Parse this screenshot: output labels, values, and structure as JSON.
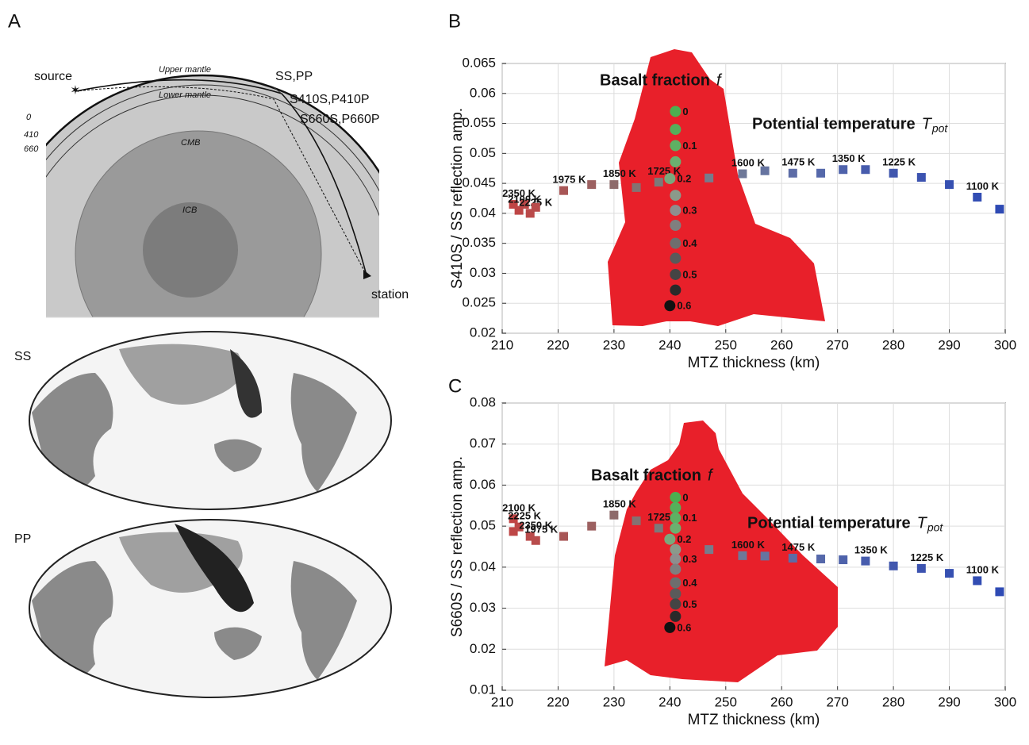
{
  "panel_a": {
    "label": "A",
    "source": "source",
    "upper_mantle": "Upper mantle",
    "lower_mantle": "Lower mantle",
    "ss_pp": "SS,PP",
    "s410": "S410S,P410P",
    "s660": "S660S,P660P",
    "depths": [
      "0",
      "410",
      "660"
    ],
    "cmb": "CMB",
    "icb": "ICB",
    "station": "station",
    "maps": [
      "SS",
      "PP"
    ]
  },
  "chart_data": [
    {
      "type": "scatter",
      "label": "B",
      "xlabel": "MTZ thickness (km)",
      "ylabel": "S410S / SS reflection amp.",
      "xlim": [
        210,
        300
      ],
      "xticks": [
        210,
        220,
        230,
        240,
        250,
        260,
        270,
        280,
        290,
        300
      ],
      "ylim": [
        0.02,
        0.065
      ],
      "yticks": [
        0.02,
        0.025,
        0.03,
        0.035,
        0.04,
        0.045,
        0.05,
        0.055,
        0.06,
        0.065
      ],
      "grid": true,
      "cloud_color": "#e8202a",
      "series": [
        {
          "name": "Potential temperature",
          "symbol": "T",
          "symbol_sub": "pot",
          "marker": "square",
          "x": [
            212,
            213,
            214,
            215,
            216,
            221,
            226,
            230,
            234,
            238,
            247,
            253,
            257,
            262,
            267,
            271,
            275,
            280,
            285,
            290,
            295,
            299
          ],
          "values": [
            0.0415,
            0.0405,
            0.0415,
            0.04,
            0.041,
            0.0438,
            0.0448,
            0.0448,
            0.0443,
            0.0452,
            0.0459,
            0.0466,
            0.0471,
            0.0467,
            0.0467,
            0.0473,
            0.0473,
            0.0467,
            0.046,
            0.0448,
            0.0427,
            0.0407
          ],
          "labels": [
            "2350 K",
            "2100 K",
            null,
            "2225 K",
            null,
            "1975 K",
            null,
            "1850 K",
            null,
            "1725 K",
            null,
            "1600 K",
            null,
            "1475 K",
            null,
            "1350 K",
            null,
            "1225 K",
            null,
            null,
            "1100 K",
            null
          ],
          "colors": [
            "#c04444",
            "#be4646",
            "#bc4848",
            "#ba4a4a",
            "#b84c4c",
            "#a85656",
            "#9c6060",
            "#8e6a6a",
            "#847272",
            "#7c7a7a",
            "#767c8c",
            "#6e7898",
            "#6674a0",
            "#5d6ca6",
            "#5568aa",
            "#4e62ab",
            "#475cad",
            "#4157ae",
            "#3c53b0",
            "#3650b1",
            "#324db3",
            "#2e4ab4"
          ]
        },
        {
          "name": "Basalt fraction",
          "symbol": "f",
          "marker": "circle",
          "x": [
            241,
            241,
            241,
            241,
            240,
            241,
            241,
            241,
            241,
            241,
            241,
            241,
            240
          ],
          "values": [
            0.057,
            0.054,
            0.0513,
            0.0486,
            0.0458,
            0.043,
            0.0405,
            0.038,
            0.035,
            0.0325,
            0.0298,
            0.0272,
            0.0246
          ],
          "labels": [
            "0",
            null,
            "0.1",
            null,
            "0.2",
            null,
            "0.3",
            null,
            "0.4",
            null,
            "0.5",
            null,
            "0.6"
          ],
          "colors": [
            "#4caf50",
            "#55b05a",
            "#5eb163",
            "#6bb06f",
            "#7aa87c",
            "#8a9a8b",
            "#8e8e8e",
            "#7f7f7f",
            "#6e6e6e",
            "#5a5a5a",
            "#444444",
            "#2a2a2a",
            "#111111"
          ]
        }
      ]
    },
    {
      "type": "scatter",
      "label": "C",
      "xlabel": "MTZ thickness (km)",
      "ylabel": "S660S / SS reflection amp.",
      "xlim": [
        210,
        300
      ],
      "xticks": [
        210,
        220,
        230,
        240,
        250,
        260,
        270,
        280,
        290,
        300
      ],
      "ylim": [
        0.01,
        0.08
      ],
      "yticks": [
        0.01,
        0.02,
        0.03,
        0.04,
        0.05,
        0.06,
        0.07,
        0.08
      ],
      "grid": true,
      "cloud_color": "#e8202a",
      "series": [
        {
          "name": "Potential temperature",
          "symbol": "T",
          "symbol_sub": "pot",
          "marker": "square",
          "x": [
            212,
            212,
            213,
            215,
            216,
            221,
            226,
            230,
            234,
            238,
            247,
            253,
            257,
            262,
            267,
            271,
            275,
            280,
            285,
            290,
            295,
            299
          ],
          "values": [
            0.0518,
            0.0487,
            0.0498,
            0.0475,
            0.0465,
            0.0475,
            0.05,
            0.0527,
            0.0513,
            0.0495,
            0.0443,
            0.0428,
            0.0427,
            0.0422,
            0.042,
            0.0418,
            0.0415,
            0.0403,
            0.0397,
            0.0385,
            0.0367,
            0.034
          ],
          "labels": [
            "2100 K",
            null,
            "2225 K",
            "2350 K",
            "1975 K",
            null,
            null,
            "1850 K",
            null,
            "1725",
            null,
            "1600 K",
            null,
            "1475 K",
            null,
            null,
            "1350 K",
            null,
            "1225 K",
            null,
            "1100 K",
            null
          ],
          "colors": [
            "#c04444",
            "#be4646",
            "#bc4848",
            "#ba4a4a",
            "#b84c4c",
            "#a85656",
            "#9c6060",
            "#8e6a6a",
            "#847272",
            "#7c7a7a",
            "#767c8c",
            "#6e7898",
            "#6674a0",
            "#5d6ca6",
            "#5568aa",
            "#4e62ab",
            "#475cad",
            "#4157ae",
            "#3c53b0",
            "#3650b1",
            "#324db3",
            "#2e4ab4"
          ]
        },
        {
          "name": "Basalt fraction",
          "symbol": "f",
          "marker": "circle",
          "x": [
            241,
            241,
            241,
            241,
            240,
            241,
            241,
            241,
            241,
            241,
            241,
            241,
            240
          ],
          "values": [
            0.057,
            0.0545,
            0.052,
            0.0495,
            0.0468,
            0.0443,
            0.042,
            0.0395,
            0.0362,
            0.0335,
            0.031,
            0.028,
            0.0253
          ],
          "labels": [
            "0",
            null,
            "0.1",
            null,
            "0.2",
            null,
            "0.3",
            null,
            "0.4",
            null,
            "0.5",
            null,
            "0.6"
          ],
          "colors": [
            "#4caf50",
            "#55b05a",
            "#5eb163",
            "#6bb06f",
            "#7aa87c",
            "#8a9a8b",
            "#8e8e8e",
            "#7f7f7f",
            "#6e6e6e",
            "#5a5a5a",
            "#444444",
            "#2a2a2a",
            "#111111"
          ]
        }
      ]
    }
  ]
}
